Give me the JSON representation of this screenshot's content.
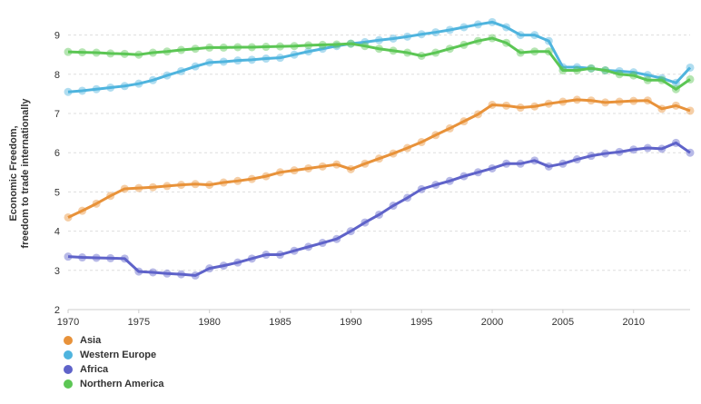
{
  "chart_data": {
    "type": "line",
    "title": "",
    "xlabel": "",
    "ylabel_lines": [
      "Economic Freedom,",
      "freedom to trade internationally"
    ],
    "xlim": [
      1970,
      2014
    ],
    "ylim": [
      2,
      9.5
    ],
    "xticks": [
      1970,
      1975,
      1980,
      1985,
      1990,
      1995,
      2000,
      2005,
      2010
    ],
    "yticks": [
      2,
      3,
      4,
      5,
      6,
      7,
      8,
      9
    ],
    "grid": "horizontal",
    "legend_position": "bottom-left",
    "x": [
      1970,
      1971,
      1972,
      1973,
      1974,
      1975,
      1976,
      1977,
      1978,
      1979,
      1980,
      1981,
      1982,
      1983,
      1984,
      1985,
      1986,
      1987,
      1988,
      1989,
      1990,
      1991,
      1992,
      1993,
      1994,
      1995,
      1996,
      1997,
      1998,
      1999,
      2000,
      2001,
      2002,
      2003,
      2004,
      2005,
      2006,
      2007,
      2008,
      2009,
      2010,
      2011,
      2012,
      2013,
      2014
    ],
    "series": [
      {
        "name": "Asia",
        "color": "#e8923a",
        "values": [
          4.35,
          4.52,
          4.7,
          4.9,
          5.08,
          5.1,
          5.12,
          5.15,
          5.18,
          5.2,
          5.18,
          5.24,
          5.28,
          5.33,
          5.4,
          5.5,
          5.55,
          5.6,
          5.65,
          5.7,
          5.58,
          5.72,
          5.85,
          5.98,
          6.12,
          6.27,
          6.45,
          6.62,
          6.8,
          6.98,
          7.22,
          7.2,
          7.15,
          7.18,
          7.25,
          7.3,
          7.35,
          7.33,
          7.28,
          7.3,
          7.32,
          7.33,
          7.12,
          7.2,
          7.07
        ]
      },
      {
        "name": "Western Europe",
        "color": "#4fb4de",
        "values": [
          7.55,
          7.58,
          7.62,
          7.66,
          7.7,
          7.76,
          7.85,
          7.97,
          8.08,
          8.2,
          8.3,
          8.32,
          8.35,
          8.37,
          8.4,
          8.42,
          8.5,
          8.58,
          8.65,
          8.72,
          8.78,
          8.82,
          8.87,
          8.91,
          8.96,
          9.02,
          9.07,
          9.13,
          9.2,
          9.27,
          9.33,
          9.2,
          9.0,
          9.0,
          8.85,
          8.18,
          8.18,
          8.15,
          8.1,
          8.08,
          8.05,
          7.98,
          7.9,
          7.78,
          8.17
        ]
      },
      {
        "name": "Africa",
        "color": "#5f63c9",
        "values": [
          3.35,
          3.33,
          3.32,
          3.31,
          3.3,
          2.97,
          2.95,
          2.92,
          2.9,
          2.87,
          3.05,
          3.12,
          3.2,
          3.3,
          3.4,
          3.4,
          3.5,
          3.6,
          3.7,
          3.8,
          4.0,
          4.22,
          4.42,
          4.65,
          4.85,
          5.07,
          5.18,
          5.28,
          5.4,
          5.5,
          5.6,
          5.72,
          5.72,
          5.8,
          5.65,
          5.72,
          5.83,
          5.92,
          5.98,
          6.02,
          6.08,
          6.12,
          6.1,
          6.25,
          6.0
        ]
      },
      {
        "name": "Northern America",
        "color": "#5cc654",
        "values": [
          8.57,
          8.56,
          8.55,
          8.53,
          8.52,
          8.5,
          8.55,
          8.58,
          8.62,
          8.65,
          8.68,
          8.68,
          8.69,
          8.69,
          8.7,
          8.71,
          8.72,
          8.74,
          8.75,
          8.76,
          8.78,
          8.72,
          8.65,
          8.6,
          8.55,
          8.47,
          8.55,
          8.65,
          8.75,
          8.85,
          8.92,
          8.8,
          8.55,
          8.58,
          8.58,
          8.1,
          8.1,
          8.15,
          8.1,
          8.0,
          7.97,
          7.85,
          7.85,
          7.62,
          7.87
        ]
      }
    ]
  }
}
